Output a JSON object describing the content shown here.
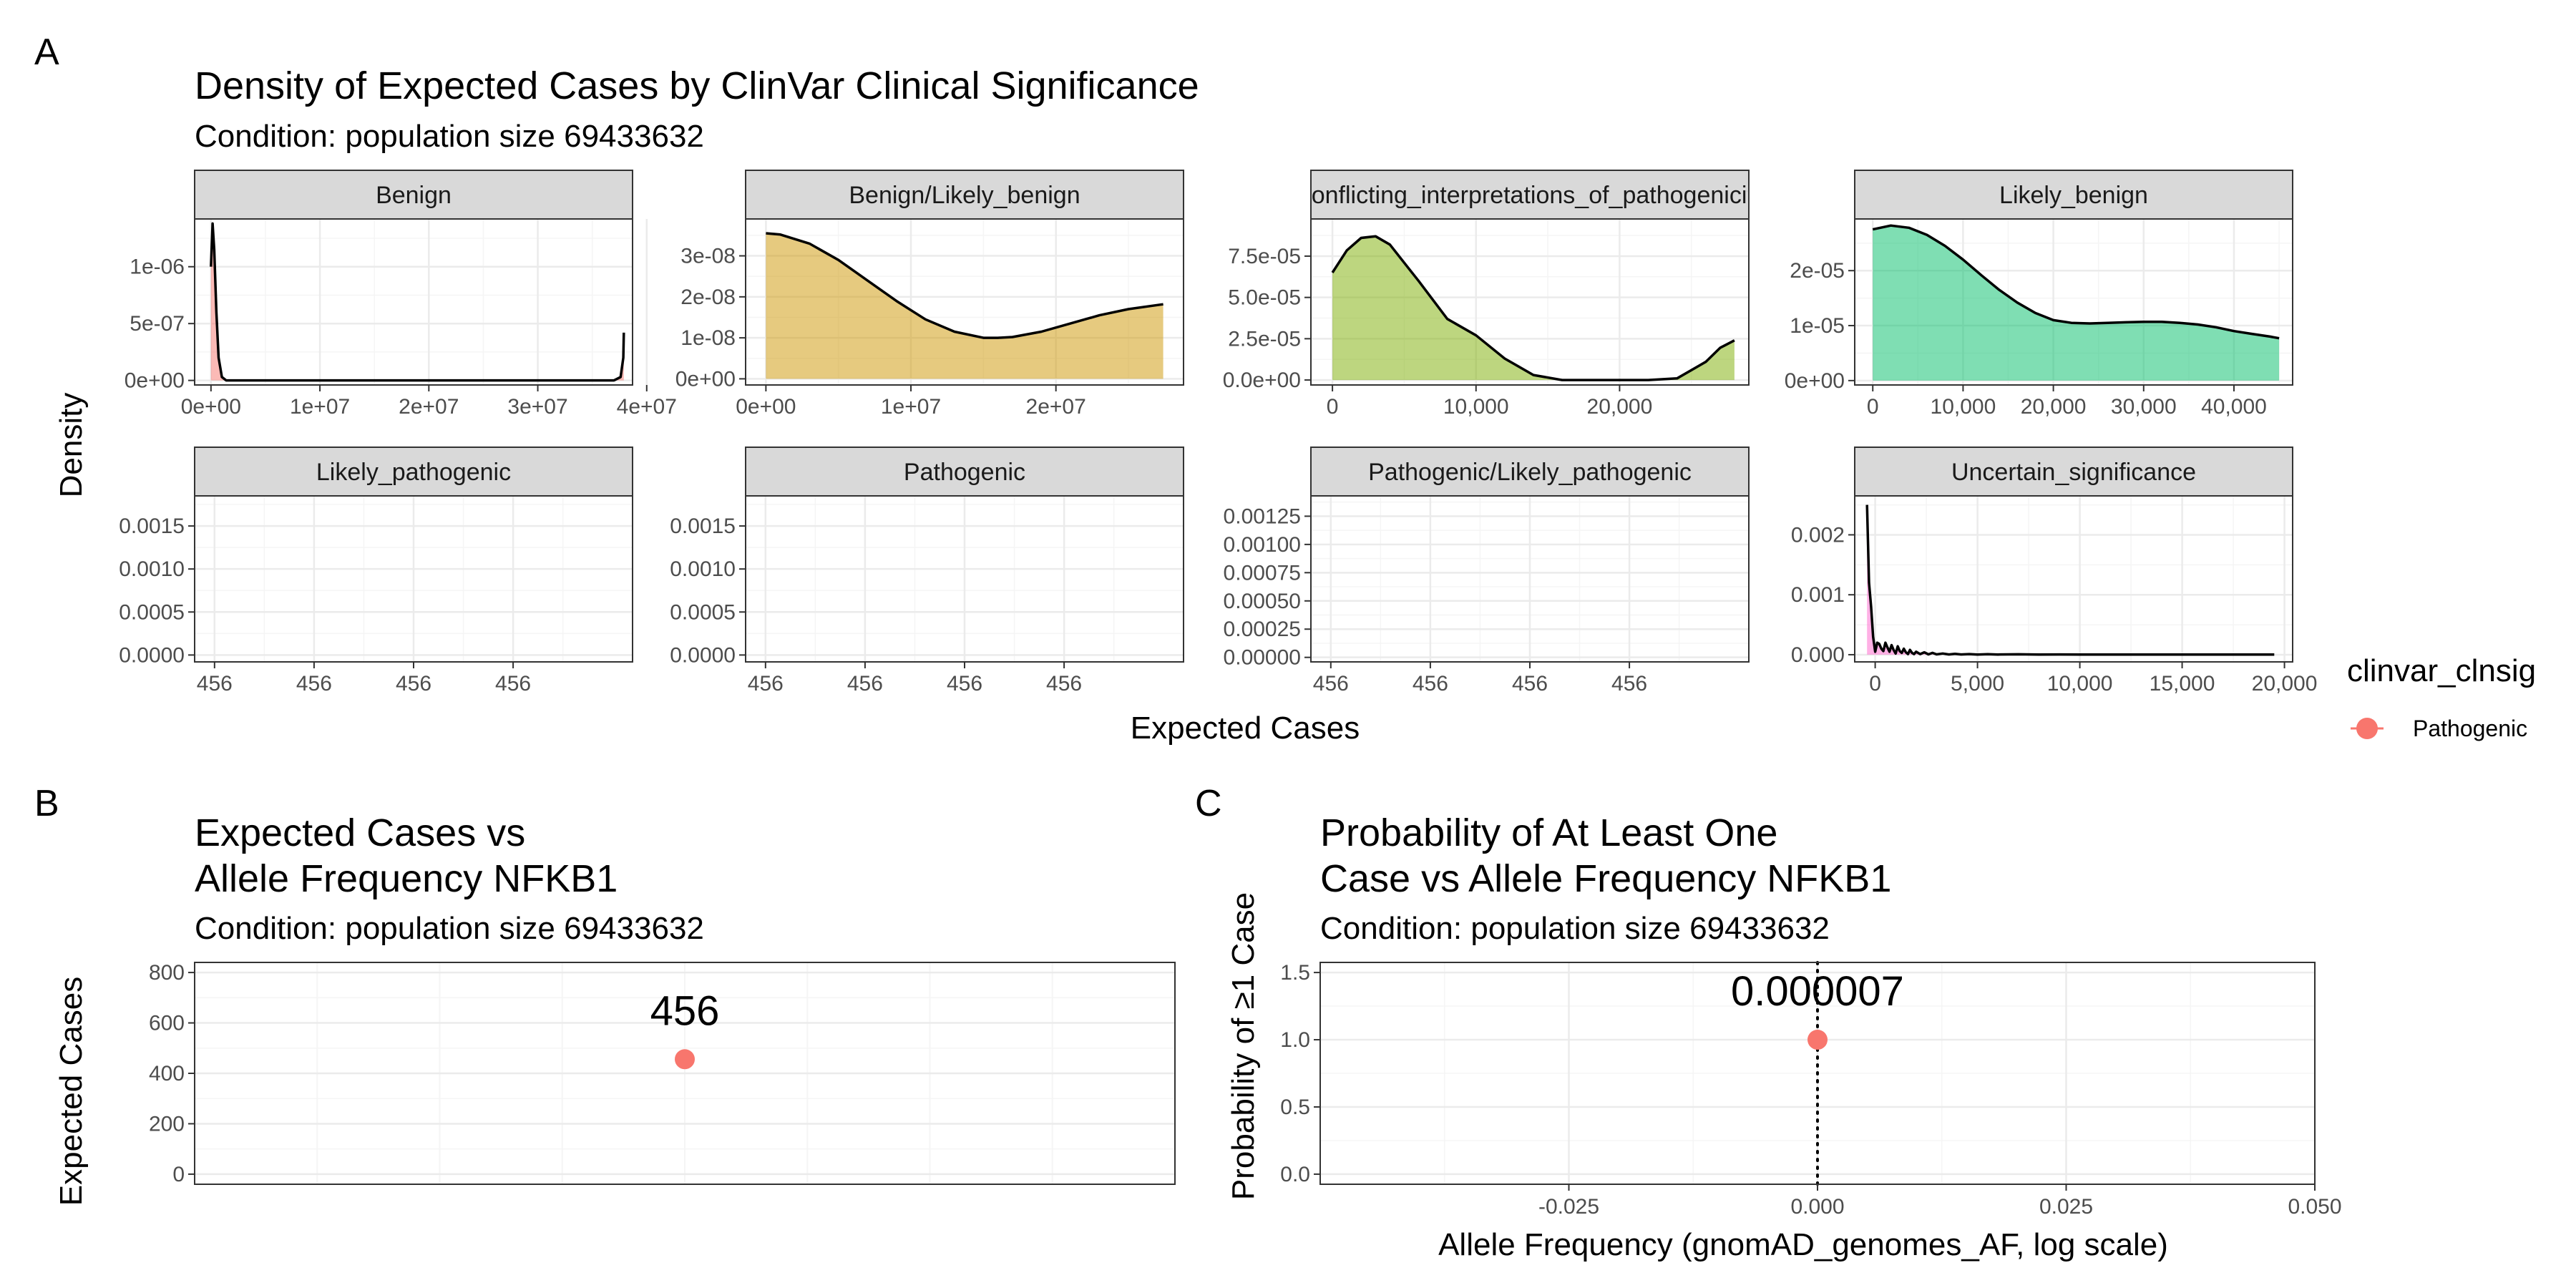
{
  "panel_tags": [
    "A",
    "B",
    "C"
  ],
  "chart_data": [
    {
      "type": "area",
      "title": "Density of Expected Cases by ClinVar Clinical Significance",
      "subtitle": "Condition: population size 69433632",
      "xlabel": "Expected Cases",
      "ylabel": "Density",
      "grid": true,
      "facets": [
        {
          "name": "Benign",
          "color": "#F8766D",
          "xlim": [
            -1500000,
            38700000
          ],
          "ylim": [
            -4e-08,
            1.42e-06
          ],
          "xticks": [
            0,
            10000000,
            20000000,
            30000000,
            40000000
          ],
          "xtick_labels": [
            "0e+00",
            "1e+07",
            "2e+07",
            "3e+07",
            "4e+07"
          ],
          "yticks": [
            0,
            5e-07,
            1e-06
          ],
          "ytick_labels": [
            "0e+00",
            "5e-07",
            "1e-06"
          ],
          "x": [
            0,
            150000,
            300000,
            500000,
            700000,
            1000000,
            1400000,
            2000000,
            5000000,
            10000000,
            20000000,
            30000000,
            36000000,
            37000000,
            37600000,
            37850000,
            37900000
          ],
          "y": [
            1e-06,
            1.38e-06,
            1.15e-06,
            6e-07,
            2e-07,
            3e-08,
            0,
            0,
            0,
            0,
            0,
            0,
            0,
            0,
            3e-08,
            2e-07,
            4.2e-07
          ]
        },
        {
          "name": "Benign/Likely_benign",
          "color": "#CD9600",
          "xlim": [
            -1400000,
            28800000
          ],
          "ylim": [
            -1.5e-09,
            3.9e-08
          ],
          "xticks": [
            0,
            10000000,
            20000000
          ],
          "xtick_labels": [
            "0e+00",
            "1e+07",
            "2e+07"
          ],
          "yticks": [
            0,
            1e-08,
            2e-08,
            3e-08
          ],
          "ytick_labels": [
            "0e+00",
            "1e-08",
            "2e-08",
            "3e-08"
          ],
          "x": [
            0,
            1000000,
            3000000,
            5000000,
            7000000,
            9000000,
            11000000,
            13000000,
            15000000,
            16000000,
            17000000,
            19000000,
            21000000,
            23000000,
            25000000,
            27000000,
            27400000
          ],
          "y": [
            3.55e-08,
            3.52e-08,
            3.3e-08,
            2.9e-08,
            2.4e-08,
            1.9e-08,
            1.45e-08,
            1.15e-08,
            1e-08,
            1e-08,
            1.02e-08,
            1.15e-08,
            1.35e-08,
            1.55e-08,
            1.7e-08,
            1.8e-08,
            1.82e-08
          ]
        },
        {
          "name": "Conflicting_interpretations_of_pathogenicity",
          "color": "#7CAE00",
          "xlim": [
            -1500,
            29000
          ],
          "ylim": [
            -3e-06,
            9.75e-05
          ],
          "xticks": [
            0,
            10000,
            20000
          ],
          "xtick_labels": [
            "0",
            "10,000",
            "20,000"
          ],
          "yticks": [
            0,
            2.5e-05,
            5e-05,
            7.5e-05
          ],
          "ytick_labels": [
            "0.0e+00",
            "2.5e-05",
            "5.0e-05",
            "7.5e-05"
          ],
          "x": [
            0,
            1000,
            2000,
            3000,
            4000,
            5000,
            6000,
            8000,
            10000,
            12000,
            14000,
            16000,
            18000,
            20000,
            22000,
            24000,
            26000,
            27000,
            28000
          ],
          "y": [
            6.5e-05,
            7.85e-05,
            8.6e-05,
            8.7e-05,
            8.2e-05,
            7.1e-05,
            6e-05,
            3.7e-05,
            2.7e-05,
            1.3e-05,
            3e-06,
            0,
            0,
            0,
            0,
            1e-06,
            1.1e-05,
            1.95e-05,
            2.4e-05
          ]
        },
        {
          "name": "Likely_benign",
          "color": "#00BE67",
          "xlim": [
            -2000,
            46500
          ],
          "ylim": [
            -8e-07,
            2.94e-05
          ],
          "xticks": [
            0,
            10000,
            20000,
            30000,
            40000
          ],
          "xtick_labels": [
            "0",
            "10,000",
            "20,000",
            "30,000",
            "40,000"
          ],
          "yticks": [
            0,
            1e-05,
            2e-05
          ],
          "ytick_labels": [
            "0e+00",
            "1e-05",
            "2e-05"
          ],
          "x": [
            0,
            2000,
            4000,
            6000,
            8000,
            10000,
            12000,
            14000,
            16000,
            18000,
            20000,
            22000,
            24000,
            26000,
            28000,
            30000,
            32000,
            34000,
            36000,
            38000,
            40000,
            42000,
            44000,
            45000
          ],
          "y": [
            2.75e-05,
            2.82e-05,
            2.78e-05,
            2.65e-05,
            2.45e-05,
            2.2e-05,
            1.92e-05,
            1.65e-05,
            1.42e-05,
            1.23e-05,
            1.1e-05,
            1.05e-05,
            1.04e-05,
            1.05e-05,
            1.06e-05,
            1.07e-05,
            1.07e-05,
            1.05e-05,
            1.02e-05,
            9.7e-06,
            9e-06,
            8.5e-06,
            8e-06,
            7.7e-06
          ]
        },
        {
          "name": "Likely_pathogenic",
          "color": "#00BFC4",
          "xlim": [
            -0.05,
            1.05
          ],
          "ylim": [
            -8e-05,
            0.00185
          ],
          "xticks": [
            0,
            0.25,
            0.5,
            0.75
          ],
          "xtick_labels": [
            "456",
            "456",
            "456",
            "456"
          ],
          "yticks": [
            0,
            0.0005,
            0.001,
            0.0015
          ],
          "ytick_labels": [
            "0.0000",
            "0.0005",
            "0.0010",
            "0.0015"
          ],
          "x": [],
          "y": []
        },
        {
          "name": "Pathogenic",
          "color": "#00A9FF",
          "xlim": [
            -0.05,
            1.05
          ],
          "ylim": [
            -8e-05,
            0.00185
          ],
          "xticks": [
            0,
            0.25,
            0.5,
            0.75
          ],
          "xtick_labels": [
            "456",
            "456",
            "456",
            "456"
          ],
          "yticks": [
            0,
            0.0005,
            0.001,
            0.0015
          ],
          "ytick_labels": [
            "0.0000",
            "0.0005",
            "0.0010",
            "0.0015"
          ],
          "x": [],
          "y": []
        },
        {
          "name": "Pathogenic/Likely_pathogenic",
          "color": "#C77CFF",
          "xlim": [
            -0.05,
            1.05
          ],
          "ylim": [
            -4e-05,
            0.00143
          ],
          "xticks": [
            0,
            0.25,
            0.5,
            0.75
          ],
          "xtick_labels": [
            "456",
            "456",
            "456",
            "456"
          ],
          "yticks": [
            0,
            0.00025,
            0.0005,
            0.00075,
            0.001,
            0.00125
          ],
          "ytick_labels": [
            "0.00000",
            "0.00025",
            "0.00050",
            "0.00075",
            "0.00100",
            "0.00125"
          ],
          "x": [],
          "y": []
        },
        {
          "name": "Uncertain_significance",
          "color": "#FF61CC",
          "xlim": [
            -1000,
            20400
          ],
          "ylim": [
            -0.00012,
            0.00265
          ],
          "xticks": [
            0,
            5000,
            10000,
            15000,
            20000
          ],
          "xtick_labels": [
            "0",
            "5,000",
            "10,000",
            "15,000",
            "20,000"
          ],
          "yticks": [
            0,
            0.001,
            0.002
          ],
          "ytick_labels": [
            "0.000",
            "0.001",
            "0.002"
          ],
          "x": [
            -400,
            -300,
            -200,
            -100,
            0,
            100,
            200,
            300,
            400,
            500,
            600,
            700,
            800,
            900,
            1000,
            1100,
            1200,
            1300,
            1400,
            1500,
            1600,
            1700,
            1800,
            1900,
            2000,
            2200,
            2400,
            2600,
            2800,
            3000,
            3300,
            3600,
            3900,
            4200,
            4600,
            5000,
            5500,
            6000,
            7000,
            8000,
            9000,
            10000,
            12000,
            14000,
            16000,
            18000,
            19500
          ],
          "y": [
            0.0025,
            0.0012,
            0.0008,
            0.0003,
            5e-05,
            0.0002,
            0.00018,
            0.0001,
            6e-05,
            0.0002,
            0.00012,
            5e-05,
            0.00016,
            8e-05,
            2e-05,
            0.00014,
            6e-05,
            3e-05,
            0.0001,
            4e-05,
            1e-05,
            8e-05,
            3e-05,
            1e-05,
            5e-05,
            1e-05,
            4e-05,
            5e-06,
            3e-05,
            5e-06,
            2e-05,
            4e-06,
            1.5e-05,
            4e-06,
            1e-05,
            3e-06,
            8e-06,
            3e-06,
            6e-06,
            2e-06,
            4e-06,
            2e-06,
            3e-06,
            2e-06,
            2e-06,
            2e-06,
            2e-06
          ]
        }
      ],
      "legend": {
        "title": "clinvar_clnsig",
        "placement": "right",
        "entries": [
          {
            "name": "Pathogenic",
            "color": "#F8766D"
          }
        ]
      }
    },
    {
      "type": "scatter",
      "title_lines": [
        "Expected Cases vs",
        "Allele Frequency NFKB1"
      ],
      "subtitle": "Condition: population size 69433632",
      "xlabel": "",
      "ylabel": "Expected Cases",
      "grid": true,
      "xlim": [
        -1,
        1
      ],
      "ylim": [
        -40,
        840
      ],
      "yticks": [
        0,
        200,
        400,
        600,
        800
      ],
      "ytick_labels": [
        "0",
        "200",
        "400",
        "600",
        "800"
      ],
      "points": [
        {
          "x": 0,
          "y": 456,
          "label": "456",
          "color": "#F8766D"
        }
      ]
    },
    {
      "type": "scatter",
      "title_lines": [
        "Probability of At Least One",
        "Case vs Allele Frequency NFKB1"
      ],
      "subtitle": "Condition: population size 69433632",
      "xlabel": "Allele Frequency (gnomAD_genomes_AF, log scale)",
      "ylabel": "Probability of ≥1 Case",
      "grid": true,
      "xlim": [
        -0.05,
        0.05
      ],
      "ylim": [
        -0.075,
        1.575
      ],
      "xticks": [
        -0.025,
        0,
        0.025,
        0.05
      ],
      "xtick_labels": [
        "-0.025",
        "0.000",
        "0.025",
        "0.050"
      ],
      "yticks": [
        0,
        0.5,
        1,
        1.5
      ],
      "ytick_labels": [
        "0.0",
        "0.5",
        "1.0",
        "1.5"
      ],
      "vline": {
        "x": 0,
        "style": "dotted"
      },
      "points": [
        {
          "x": 0,
          "y": 1,
          "label": "0.000007",
          "color": "#F8766D"
        }
      ]
    }
  ]
}
